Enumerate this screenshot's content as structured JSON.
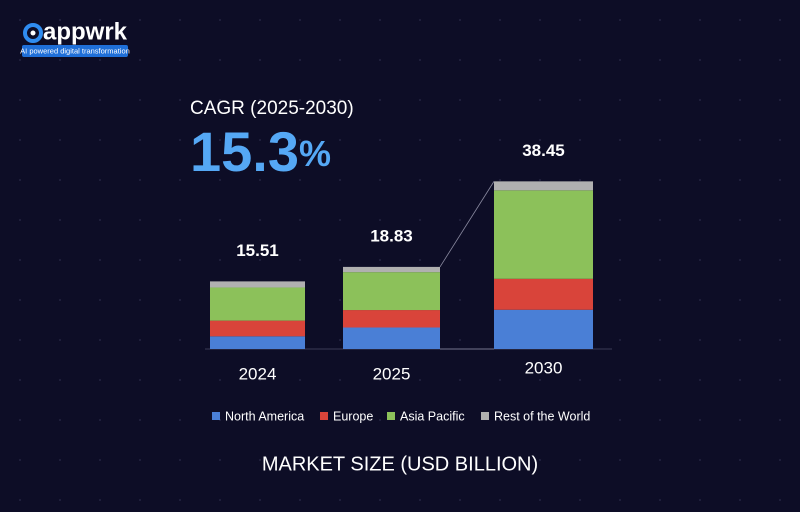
{
  "brand": {
    "name": "appwrk",
    "tagline": "AI powered digital transformation"
  },
  "cagr": {
    "label": "CAGR (2025-2030)",
    "value": "15.3",
    "unit": "%"
  },
  "chart_data": {
    "type": "stacked_bar",
    "categories": [
      "2024",
      "2025",
      "2030"
    ],
    "totals": [
      15.51,
      18.83,
      38.45
    ],
    "series": [
      {
        "name": "North America",
        "color": "#4a7fd6",
        "values": [
          2.91,
          4.93,
          9.0
        ]
      },
      {
        "name": "Europe",
        "color": "#d9443a",
        "values": [
          3.6,
          4.0,
          7.1
        ]
      },
      {
        "name": "Asia Pacific",
        "color": "#8cc15a",
        "values": [
          7.6,
          8.7,
          20.3
        ]
      },
      {
        "name": "Rest of the World",
        "color": "#b0b0b0",
        "values": [
          1.4,
          1.2,
          2.05
        ]
      }
    ],
    "x_label": "MARKET SIZE (USD BILLION)"
  }
}
